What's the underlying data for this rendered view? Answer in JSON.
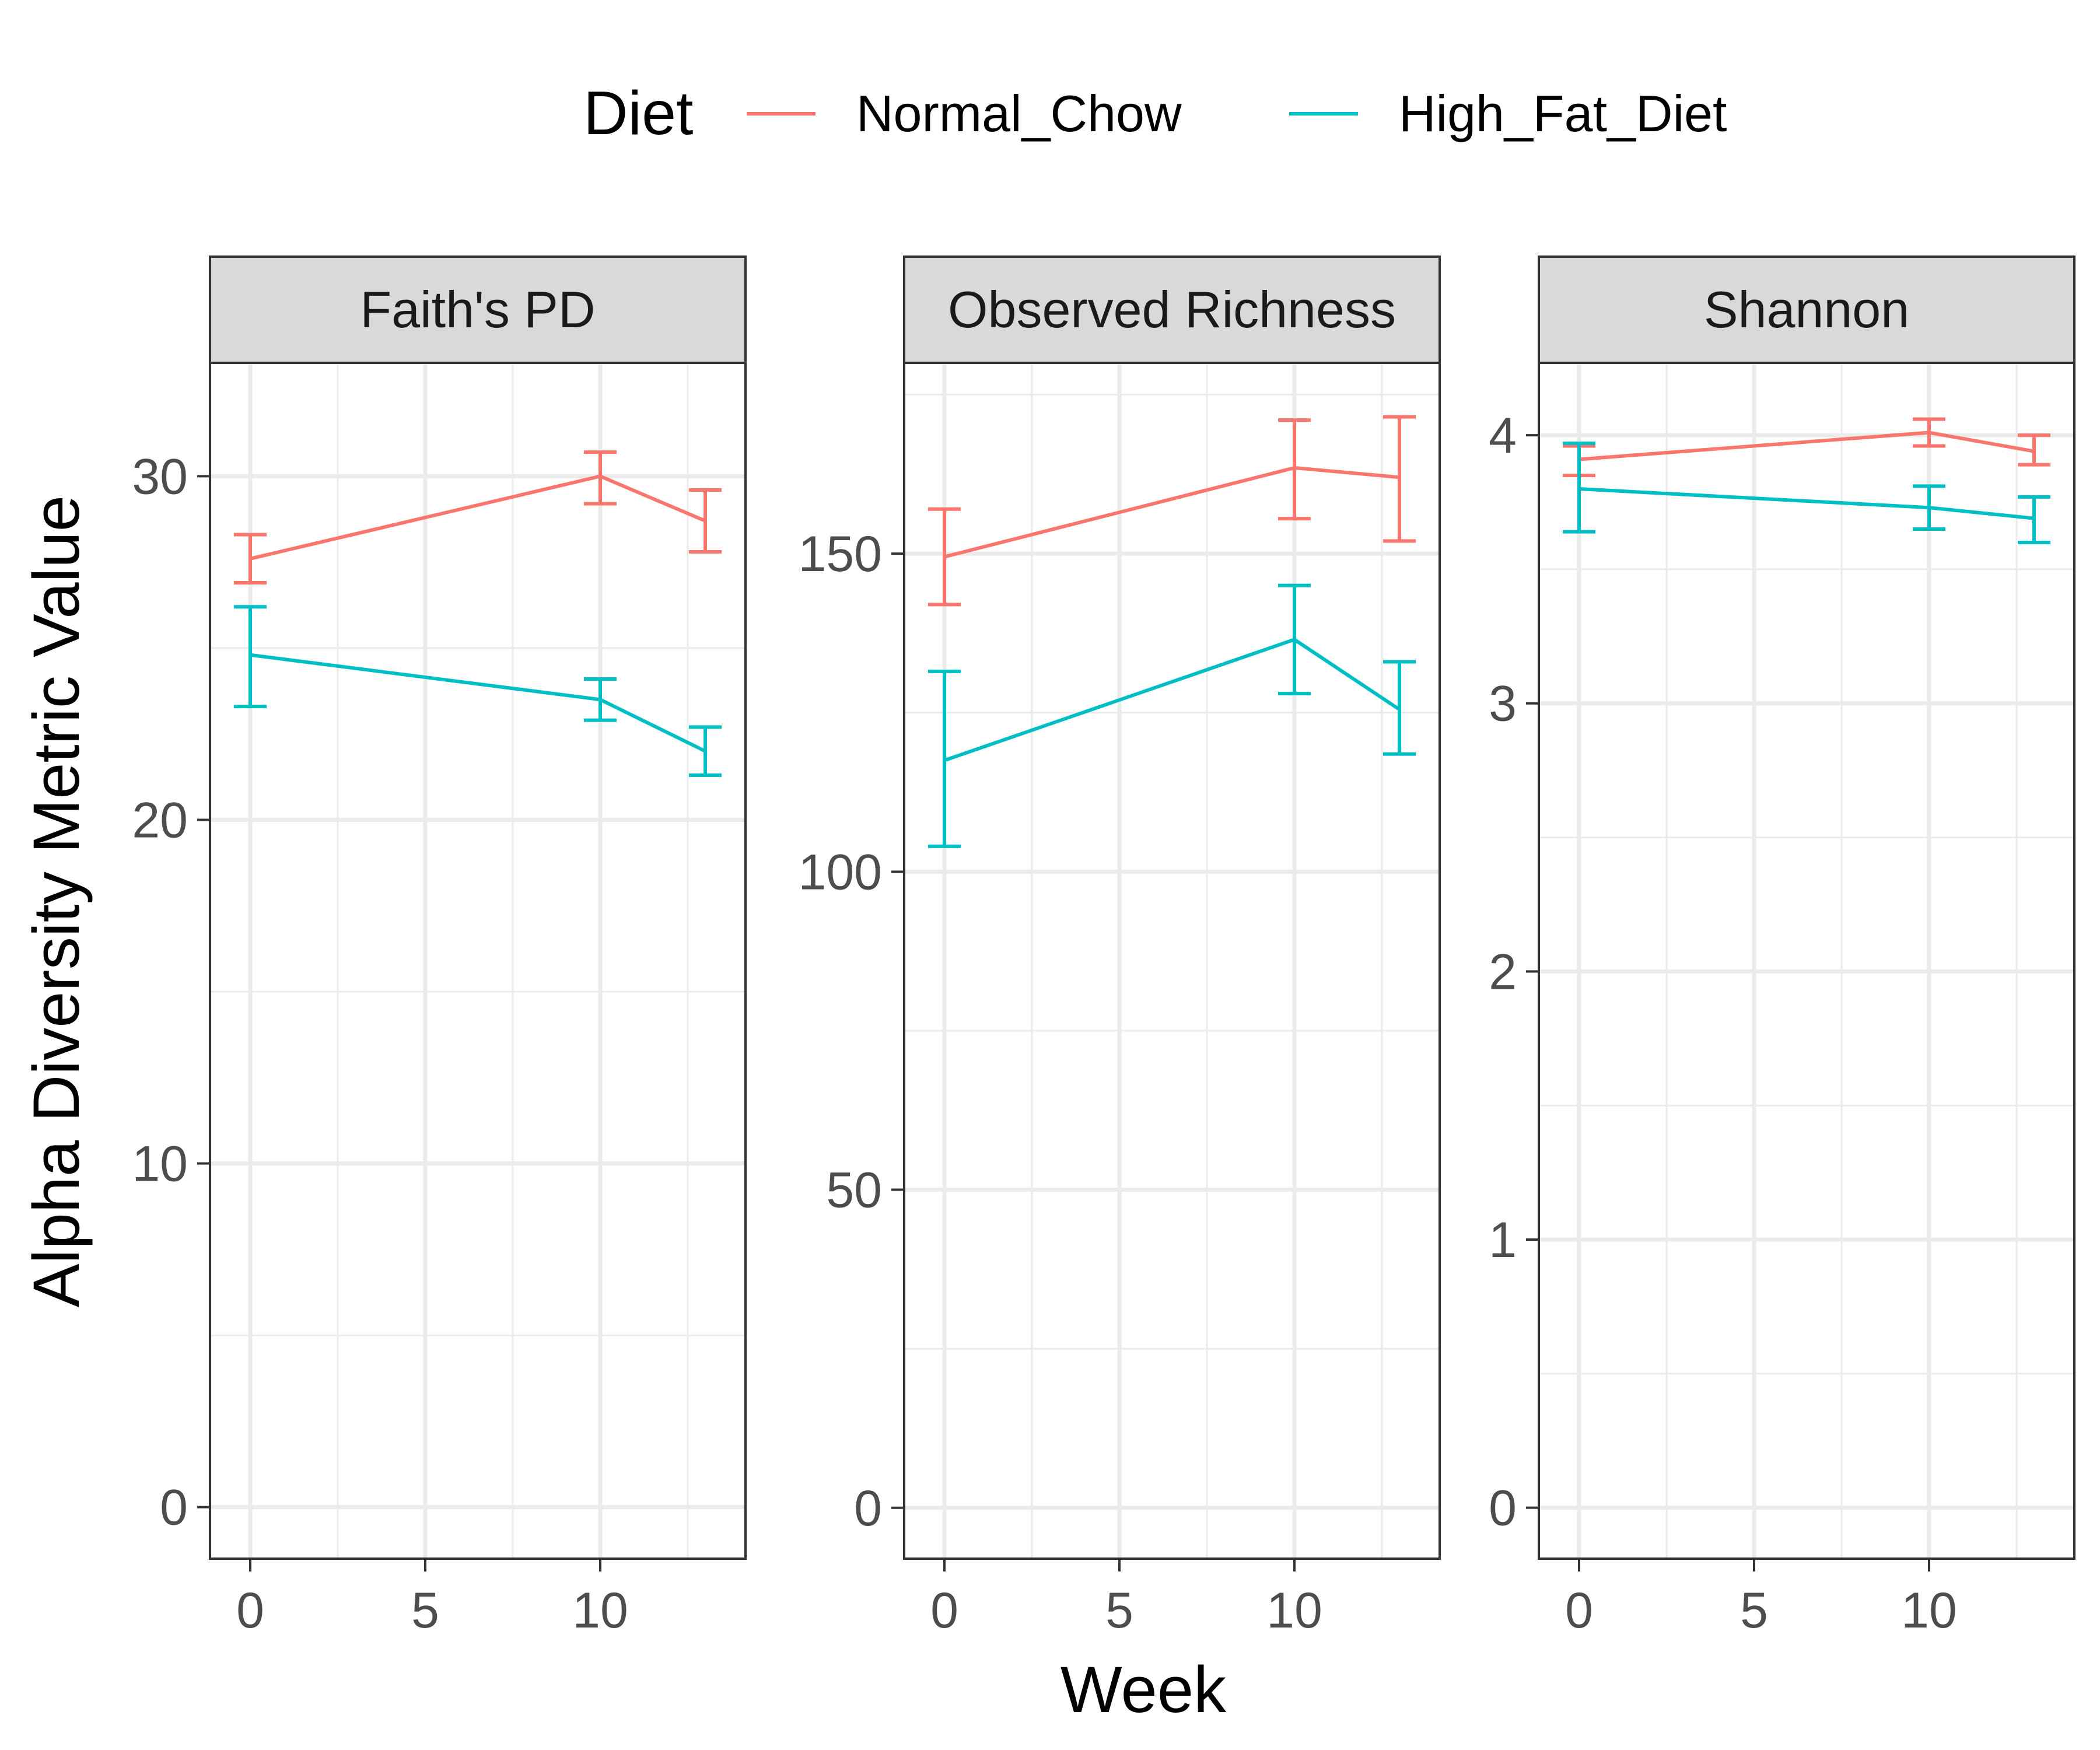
{
  "chart_data": {
    "type": "line",
    "xlabel": "Week",
    "ylabel": "Alpha Diversity Metric Value",
    "legend": {
      "title": "Diet",
      "position": "top",
      "entries": [
        {
          "name": "Normal_Chow",
          "color": "#F8766D"
        },
        {
          "name": "High_Fat_Diet",
          "color": "#00BFC4"
        }
      ]
    },
    "x_ticks": [
      "0",
      "5",
      "10"
    ],
    "xlim": [
      -1.15,
      14.15
    ],
    "grid": true,
    "facets": [
      {
        "title": "Faith's PD",
        "ylim": [
          -1.5,
          33.3
        ],
        "y_ticks": [
          "0",
          "10",
          "20",
          "30"
        ],
        "series": [
          {
            "name": "Normal_Chow",
            "x": [
              0,
              10,
              13
            ],
            "y": [
              27.6,
              30.0,
              28.7
            ],
            "ymin": [
              26.9,
              29.2,
              27.8
            ],
            "ymax": [
              28.3,
              30.7,
              29.6
            ]
          },
          {
            "name": "High_Fat_Diet",
            "x": [
              0,
              10,
              13
            ],
            "y": [
              24.8,
              23.5,
              22.0
            ],
            "ymin": [
              23.3,
              22.9,
              21.3
            ],
            "ymax": [
              26.2,
              24.1,
              22.7
            ]
          }
        ]
      },
      {
        "title": "Observed Richness",
        "ylim": [
          -8.0,
          180.0
        ],
        "y_ticks": [
          "0",
          "50",
          "100",
          "150"
        ],
        "series": [
          {
            "name": "Normal_Chow",
            "x": [
              0,
              10,
              13
            ],
            "y": [
              149.5,
              163.5,
              162.0
            ],
            "ymin": [
              142.0,
              155.5,
              152.0
            ],
            "ymax": [
              157.0,
              171.0,
              171.5
            ]
          },
          {
            "name": "High_Fat_Diet",
            "x": [
              0,
              10,
              13
            ],
            "y": [
              117.5,
              136.5,
              125.5
            ],
            "ymin": [
              104.0,
              128.0,
              118.5
            ],
            "ymax": [
              131.5,
              145.0,
              133.0
            ]
          }
        ]
      },
      {
        "title": "Shannon",
        "ylim": [
          -0.19,
          4.27
        ],
        "y_ticks": [
          "0",
          "1",
          "2",
          "3",
          "4"
        ],
        "series": [
          {
            "name": "Normal_Chow",
            "x": [
              0,
              10,
              13
            ],
            "y": [
              3.91,
              4.01,
              3.94
            ],
            "ymin": [
              3.85,
              3.96,
              3.89
            ],
            "ymax": [
              3.96,
              4.06,
              4.0
            ]
          },
          {
            "name": "High_Fat_Diet",
            "x": [
              0,
              10,
              13
            ],
            "y": [
              3.8,
              3.73,
              3.69
            ],
            "ymin": [
              3.64,
              3.65,
              3.6
            ],
            "ymax": [
              3.97,
              3.81,
              3.77
            ]
          }
        ]
      }
    ]
  }
}
